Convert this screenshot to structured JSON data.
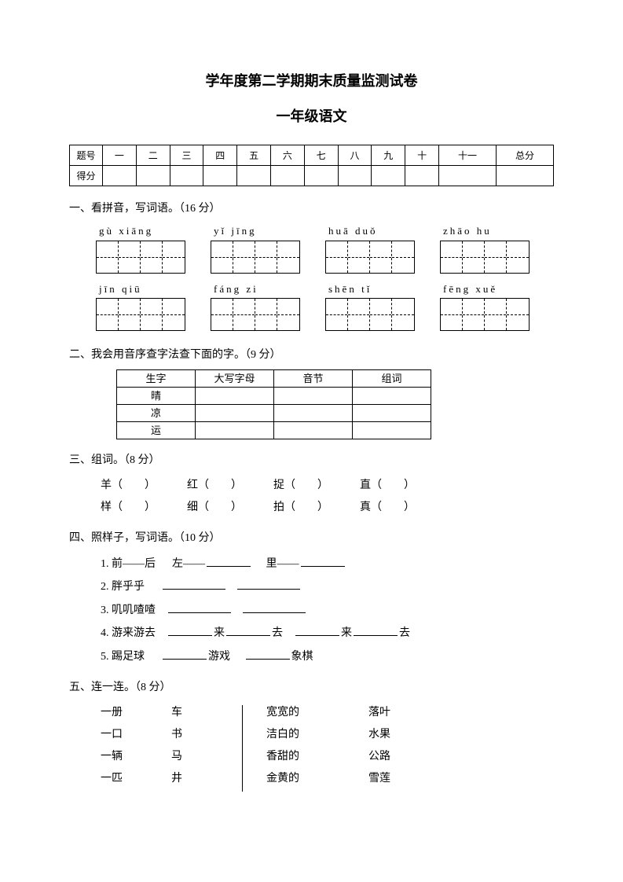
{
  "titles": {
    "main": "学年度第二学期期末质量监测试卷",
    "sub": "一年级语文"
  },
  "score_table": {
    "row1": [
      "题号",
      "一",
      "二",
      "三",
      "四",
      "五",
      "六",
      "七",
      "八",
      "九",
      "十",
      "十一",
      "总分"
    ],
    "row2_label": "得分"
  },
  "section1": {
    "heading": "一、看拼音，写词语。（16 分）",
    "row1": [
      {
        "pinyin": "gù xiāng",
        "cells": 4
      },
      {
        "pinyin": "yǐ jīng",
        "cells": 4
      },
      {
        "pinyin": "huā duǒ",
        "cells": 4
      },
      {
        "pinyin": "zhāo hu",
        "cells": 4
      }
    ],
    "row2": [
      {
        "pinyin": "jīn qiū",
        "cells": 4
      },
      {
        "pinyin": "fáng zi",
        "cells": 4
      },
      {
        "pinyin": "shēn tǐ",
        "cells": 4
      },
      {
        "pinyin": "fēng xuě",
        "cells": 4
      }
    ]
  },
  "section2": {
    "heading": "二、我会用音序查字法查下面的字。（9 分）",
    "headers": [
      "生字",
      "大写字母",
      "音节",
      "组词"
    ],
    "rows": [
      "晴",
      "凉",
      "运"
    ]
  },
  "section3": {
    "heading": "三、组词。（8 分）",
    "row1": [
      "羊（　　）",
      "红（　　）",
      "捉（　　）",
      "直（　　）"
    ],
    "row2": [
      "样（　　）",
      "细（　　）",
      "拍（　　）",
      "真（　　）"
    ]
  },
  "section4": {
    "heading": "四、照样子，写词语。（10 分）",
    "l1": {
      "prefix": "1. 前——后",
      "a": "左——",
      "b": "里——"
    },
    "l2": {
      "prefix": "2. 胖乎乎"
    },
    "l3": {
      "prefix": "3. 叽叽喳喳"
    },
    "l4": {
      "prefix": "4. 游来游去",
      "mid1": "来",
      "mid2": "去",
      "mid3": "来",
      "mid4": "去"
    },
    "l5": {
      "prefix": "5. 踢足球",
      "a": "游戏",
      "b": "象棋"
    }
  },
  "section5": {
    "heading": "五、连一连。（8 分）",
    "left_c1": [
      "一册",
      "一口",
      "一辆",
      "一匹"
    ],
    "left_c2": [
      "车",
      "书",
      "马",
      "井"
    ],
    "right_c1": [
      "宽宽的",
      "洁白的",
      "香甜的",
      "金黄的"
    ],
    "right_c2": [
      "落叶",
      "水果",
      "公路",
      "雪莲"
    ]
  },
  "style": {
    "page_bg": "#ffffff",
    "text_color": "#000000",
    "border_color": "#000000",
    "title_fontsize": 18,
    "body_fontsize": 14
  }
}
